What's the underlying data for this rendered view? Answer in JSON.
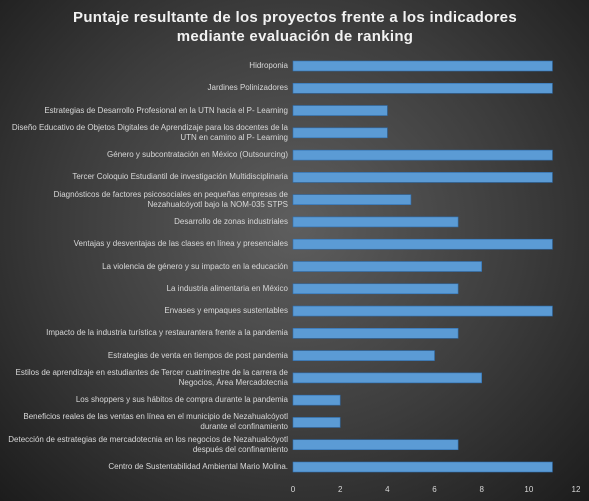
{
  "chart_data": {
    "type": "bar",
    "orientation": "horizontal",
    "title": "Puntaje resultante de los proyectos frente a los indicadores mediante evaluación de ranking",
    "categories": [
      "Hidroponia",
      "Jardines Polinizadores",
      "Estrategias de Desarrollo Profesional en la UTN hacia el P- Learning",
      "Diseño Educativo de Objetos Digitales de Aprendizaje para los docentes de la UTN en camino al P- Learning",
      "Género y subcontratación en México (Outsourcing)",
      "Tercer Coloquio Estudiantil de investigación Multidisciplinaria",
      "Diagnósticos de factores psicosociales en pequeñas empresas de Nezahualcóyotl bajo la NOM-035 STPS",
      "Desarrollo de zonas industriales",
      "Ventajas y desventajas de las clases en línea y presenciales",
      "La violencia de género y su impacto en la educación",
      "La industria alimentaria en México",
      "Envases y empaques sustentables",
      "Impacto de la industria turística y restaurantera frente a la pandemia",
      "Estrategias de venta en tiempos de post pandemia",
      "Estilos de aprendizaje en estudiantes de Tercer cuatrimestre de la carrera de Negocios, Área Mercadotecnia",
      "Los shoppers y sus hábitos de compra durante la pandemia",
      "Beneficios reales de las ventas en línea en el municipio de Nezahualcóyotl durante el confinamiento",
      "Detección de estrategias de mercadotecnia en los negocios de Nezahualcóyotl después del confinamiento",
      "Centro de Sustentabilidad Ambiental Mario Molina."
    ],
    "values": [
      11,
      11,
      4,
      4,
      11,
      11,
      5,
      7,
      11,
      8,
      7,
      11,
      7,
      6,
      8,
      2,
      2,
      7,
      11
    ],
    "color": "#5b9bd5",
    "xlim": [
      0,
      12
    ],
    "xticks": [
      0,
      2,
      4,
      6,
      8,
      10,
      12
    ],
    "grid": false
  }
}
